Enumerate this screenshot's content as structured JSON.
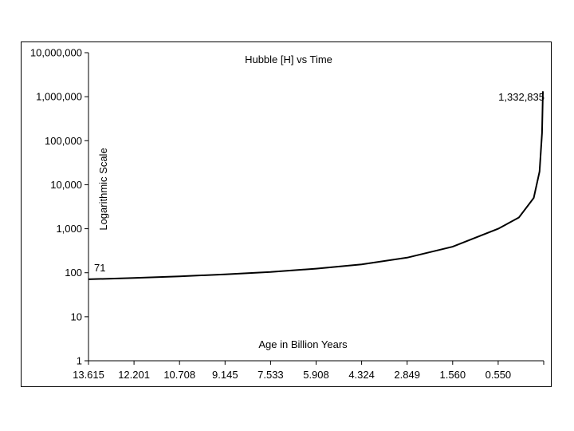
{
  "chart_data": {
    "type": "line",
    "title": "Hubble [H] vs Time",
    "xlabel": "Age in Billion Years",
    "ylabel": "Logarithmic Scale",
    "yscale": "log",
    "ylim": [
      1,
      10000000
    ],
    "y_ticks": [
      "1",
      "10",
      "100",
      "1,000",
      "10,000",
      "100,000",
      "1,000,000",
      "10,000,000"
    ],
    "x_ticks": [
      "13.615",
      "12.201",
      "10.708",
      "9.145",
      "7.533",
      "5.908",
      "4.324",
      "2.849",
      "1.560",
      "0.550"
    ],
    "annotations": [
      {
        "label": "71",
        "value": 71
      },
      {
        "label": "1,332,835",
        "value": 1332835
      }
    ],
    "series": [
      {
        "x": [
          13.615,
          12.201,
          10.708,
          9.145,
          7.533,
          5.908,
          4.324,
          2.849,
          1.56,
          0.55,
          0.3,
          0.12,
          0.05,
          0.02,
          0.01
        ],
        "values": [
          71,
          76,
          83,
          92,
          104,
          124,
          155,
          220,
          390,
          1000,
          1800,
          5000,
          20000,
          150000,
          1332835
        ]
      }
    ],
    "grid": false,
    "legend": "none"
  }
}
